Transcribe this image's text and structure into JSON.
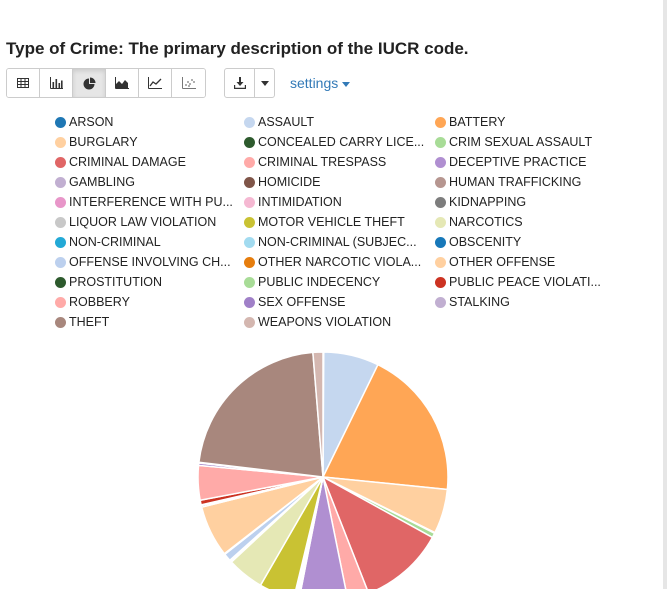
{
  "chart_data": {
    "type": "pie",
    "title": "Type of Crime: The primary description of the IUCR code.",
    "legend_position": "top",
    "series": [
      {
        "name": "ARSON",
        "value": 0.1,
        "color": "#1f77b4"
      },
      {
        "name": "ASSAULT",
        "value": 7.2,
        "color": "#c5d7ef"
      },
      {
        "name": "BATTERY",
        "value": 19.5,
        "color": "#ffa655"
      },
      {
        "name": "BURGLARY",
        "value": 5.8,
        "color": "#ffd0a0"
      },
      {
        "name": "CONCEALED CARRY LICE...",
        "value": 0.1,
        "color": "#2d5a2d"
      },
      {
        "name": "CRIM SEXUAL ASSAULT",
        "value": 0.6,
        "color": "#a8dc97"
      },
      {
        "name": "CRIMINAL DAMAGE",
        "value": 11.1,
        "color": "#e06666"
      },
      {
        "name": "CRIMINAL TRESPASS",
        "value": 2.8,
        "color": "#ffaaa8"
      },
      {
        "name": "DECEPTIVE PRACTICE",
        "value": 6.3,
        "color": "#b08fd1"
      },
      {
        "name": "GAMBLING",
        "value": 0.1,
        "color": "#c1afd1"
      },
      {
        "name": "HOMICIDE",
        "value": 0.1,
        "color": "#7f5548"
      },
      {
        "name": "HUMAN TRAFFICKING",
        "value": 0.1,
        "color": "#b69690"
      },
      {
        "name": "INTERFERENCE WITH PU...",
        "value": 0.1,
        "color": "#e896c9"
      },
      {
        "name": "INTIMIDATION",
        "value": 0.1,
        "color": "#f5b8d2"
      },
      {
        "name": "KIDNAPPING",
        "value": 0.1,
        "color": "#7d7d7d"
      },
      {
        "name": "LIQUOR LAW VIOLATION",
        "value": 0.1,
        "color": "#c8c8c8"
      },
      {
        "name": "MOTOR VEHICLE THEFT",
        "value": 4.6,
        "color": "#c9c233"
      },
      {
        "name": "NARCOTICS",
        "value": 4.8,
        "color": "#e5e8b5"
      },
      {
        "name": "NON-CRIMINAL",
        "value": 0.1,
        "color": "#23a9d6"
      },
      {
        "name": "NON-CRIMINAL (SUBJEC...",
        "value": 0.1,
        "color": "#a2dbf0"
      },
      {
        "name": "OBSCENITY",
        "value": 0.1,
        "color": "#1778b9"
      },
      {
        "name": "OFFENSE INVOLVING CH...",
        "value": 1.0,
        "color": "#bcd0ee"
      },
      {
        "name": "OTHER NARCOTIC VIOLA...",
        "value": 0.1,
        "color": "#e67d0d"
      },
      {
        "name": "OTHER OFFENSE",
        "value": 6.7,
        "color": "#ffd0a0"
      },
      {
        "name": "PROSTITUTION",
        "value": 0.2,
        "color": "#2d5a2d"
      },
      {
        "name": "PUBLIC INDECENCY",
        "value": 0.1,
        "color": "#a8dc97"
      },
      {
        "name": "PUBLIC PEACE VIOLATI...",
        "value": 0.6,
        "color": "#cc3322"
      },
      {
        "name": "ROBBERY",
        "value": 4.5,
        "color": "#ffaaa8"
      },
      {
        "name": "SEX OFFENSE",
        "value": 0.3,
        "color": "#a080c8"
      },
      {
        "name": "STALKING",
        "value": 0.1,
        "color": "#c1afd1"
      },
      {
        "name": "THEFT",
        "value": 22.0,
        "color": "#a8877d"
      },
      {
        "name": "WEAPONS VIOLATION",
        "value": 1.3,
        "color": "#d4b7b0"
      }
    ]
  },
  "toolbar": {
    "settings_label": "settings"
  }
}
